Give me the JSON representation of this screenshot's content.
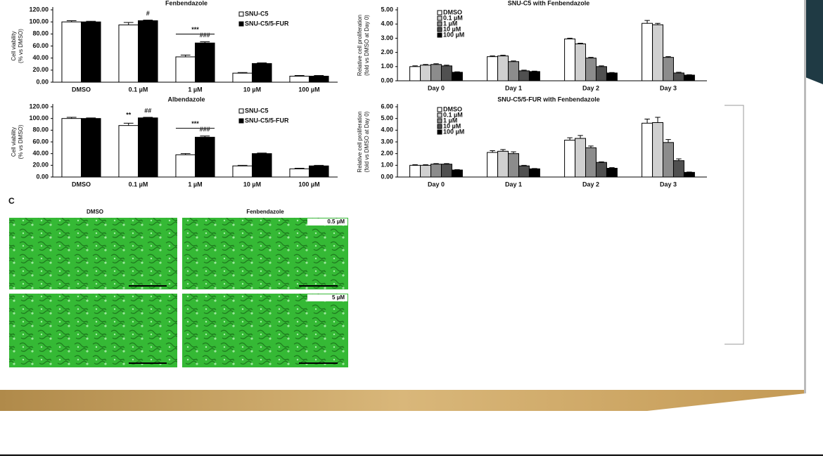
{
  "chart_data": [
    {
      "type": "bar",
      "title": "Fenbendazole",
      "ylabel": [
        "Cell viability",
        "(% vs DMSO)"
      ],
      "categories": [
        "DMSO",
        "0.1 µM",
        "1 µM",
        "10 µM",
        "100 µM"
      ],
      "series": [
        {
          "name": "SNU-C5",
          "color": "#ffffff",
          "values": [
            100,
            95,
            42,
            15,
            10
          ],
          "errors": [
            2,
            4,
            3,
            1,
            1
          ]
        },
        {
          "name": "SNU-C5/5-FUR",
          "color": "#000000",
          "values": [
            100,
            102,
            65,
            31,
            10
          ],
          "errors": [
            1,
            1,
            2,
            1,
            1
          ]
        }
      ],
      "ylim": [
        0,
        120
      ],
      "yticks": [
        {
          "value": 0,
          "label": "0.00"
        },
        {
          "value": 20,
          "label": "20.00"
        },
        {
          "value": 40,
          "label": "40.00"
        },
        {
          "value": 60,
          "label": "60.00"
        },
        {
          "value": 80,
          "label": "80.00"
        },
        {
          "value": 100,
          "label": "100.00"
        },
        {
          "value": 120,
          "label": "120.00"
        }
      ],
      "annotations": [
        "#",
        "***",
        "###"
      ]
    },
    {
      "type": "bar",
      "title": "Albendazole",
      "ylabel": [
        "Cell viability",
        "(% vs DMSO)"
      ],
      "categories": [
        "DMSO",
        "0.1 µM",
        "1 µM",
        "10 µM",
        "100 µM"
      ],
      "series": [
        {
          "name": "SNU-C5",
          "color": "#ffffff",
          "values": [
            100,
            88,
            38,
            19,
            14
          ],
          "errors": [
            2,
            4,
            2,
            1,
            1
          ]
        },
        {
          "name": "SNU-C5/5-FUR",
          "color": "#000000",
          "values": [
            100,
            101,
            68,
            40,
            19
          ],
          "errors": [
            1,
            1,
            2,
            1,
            1
          ]
        }
      ],
      "ylim": [
        0,
        120
      ],
      "yticks": [
        {
          "value": 0,
          "label": "0.00"
        },
        {
          "value": 20,
          "label": "20.00"
        },
        {
          "value": 40,
          "label": "40.00"
        },
        {
          "value": 60,
          "label": "60.00"
        },
        {
          "value": 80,
          "label": "80.00"
        },
        {
          "value": 100,
          "label": "100.00"
        },
        {
          "value": 120,
          "label": "120.00"
        }
      ],
      "annotations": [
        "**",
        "##",
        "***",
        "###"
      ]
    },
    {
      "type": "bar",
      "title": "SNU-C5 with Fenbendazole",
      "ylabel": [
        "Relative cell proliferation",
        "(fold vs DMSO at Day 0)"
      ],
      "categories": [
        "Day 0",
        "Day 1",
        "Day 2",
        "Day 3"
      ],
      "series": [
        {
          "name": "DMSO",
          "color": "#ffffff",
          "values": [
            1.0,
            1.7,
            2.95,
            4.05
          ],
          "errors": [
            0.05,
            0.05,
            0.05,
            0.2
          ]
        },
        {
          "name": "0.1 µM",
          "color": "#d0d0d0",
          "values": [
            1.1,
            1.75,
            2.6,
            3.95
          ],
          "errors": [
            0.05,
            0.05,
            0.05,
            0.1
          ]
        },
        {
          "name": "1 µM",
          "color": "#8c8c8c",
          "values": [
            1.15,
            1.35,
            1.6,
            1.65
          ],
          "errors": [
            0.05,
            0.05,
            0.05,
            0.05
          ]
        },
        {
          "name": "10 µM",
          "color": "#505050",
          "values": [
            1.05,
            0.7,
            1.0,
            0.55
          ],
          "errors": [
            0.05,
            0.05,
            0.05,
            0.05
          ]
        },
        {
          "name": "100 µM",
          "color": "#000000",
          "values": [
            0.6,
            0.65,
            0.55,
            0.4
          ],
          "errors": [
            0.03,
            0.03,
            0.03,
            0.03
          ]
        }
      ],
      "ylim": [
        0,
        5
      ],
      "yticks": [
        {
          "value": 0,
          "label": "0.00"
        },
        {
          "value": 1,
          "label": "1.00"
        },
        {
          "value": 2,
          "label": "2.00"
        },
        {
          "value": 3,
          "label": "3.00"
        },
        {
          "value": 4,
          "label": "4.00"
        },
        {
          "value": 5,
          "label": "5.00"
        }
      ],
      "annotations": []
    },
    {
      "type": "bar",
      "title": "SNU-C5/5-FUR with Fenbendazole",
      "ylabel": [
        "Relative cell proliferation",
        "(fold vs DMSO at Day 0)"
      ],
      "categories": [
        "Day 0",
        "Day 1",
        "Day 2",
        "Day 3"
      ],
      "series": [
        {
          "name": "DMSO",
          "color": "#ffffff",
          "values": [
            1.0,
            2.1,
            3.15,
            4.6
          ],
          "errors": [
            0.05,
            0.15,
            0.2,
            0.35
          ]
        },
        {
          "name": "0.1 µM",
          "color": "#d0d0d0",
          "values": [
            1.0,
            2.2,
            3.3,
            4.65
          ],
          "errors": [
            0.05,
            0.15,
            0.25,
            0.45
          ]
        },
        {
          "name": "1 µM",
          "color": "#8c8c8c",
          "values": [
            1.1,
            2.0,
            2.5,
            2.95
          ],
          "errors": [
            0.05,
            0.15,
            0.15,
            0.25
          ]
        },
        {
          "name": "10 µM",
          "color": "#505050",
          "values": [
            1.1,
            0.95,
            1.25,
            1.4
          ],
          "errors": [
            0.05,
            0.05,
            0.05,
            0.15
          ]
        },
        {
          "name": "100 µM",
          "color": "#000000",
          "values": [
            0.6,
            0.7,
            0.75,
            0.4
          ],
          "errors": [
            0.03,
            0.03,
            0.05,
            0.03
          ]
        }
      ],
      "ylim": [
        0,
        6
      ],
      "yticks": [
        {
          "value": 0,
          "label": "0.00"
        },
        {
          "value": 1,
          "label": "1.00"
        },
        {
          "value": 2,
          "label": "2.00"
        },
        {
          "value": 3,
          "label": "3.00"
        },
        {
          "value": 4,
          "label": "4.00"
        },
        {
          "value": 5,
          "label": "5.00"
        },
        {
          "value": 6,
          "label": "6.00"
        }
      ],
      "annotations": []
    }
  ],
  "panel_c": {
    "label": "C",
    "columns": [
      "DMSO",
      "Fenbendazole"
    ],
    "insets": [
      "0.5 µM",
      "5 µM"
    ]
  }
}
